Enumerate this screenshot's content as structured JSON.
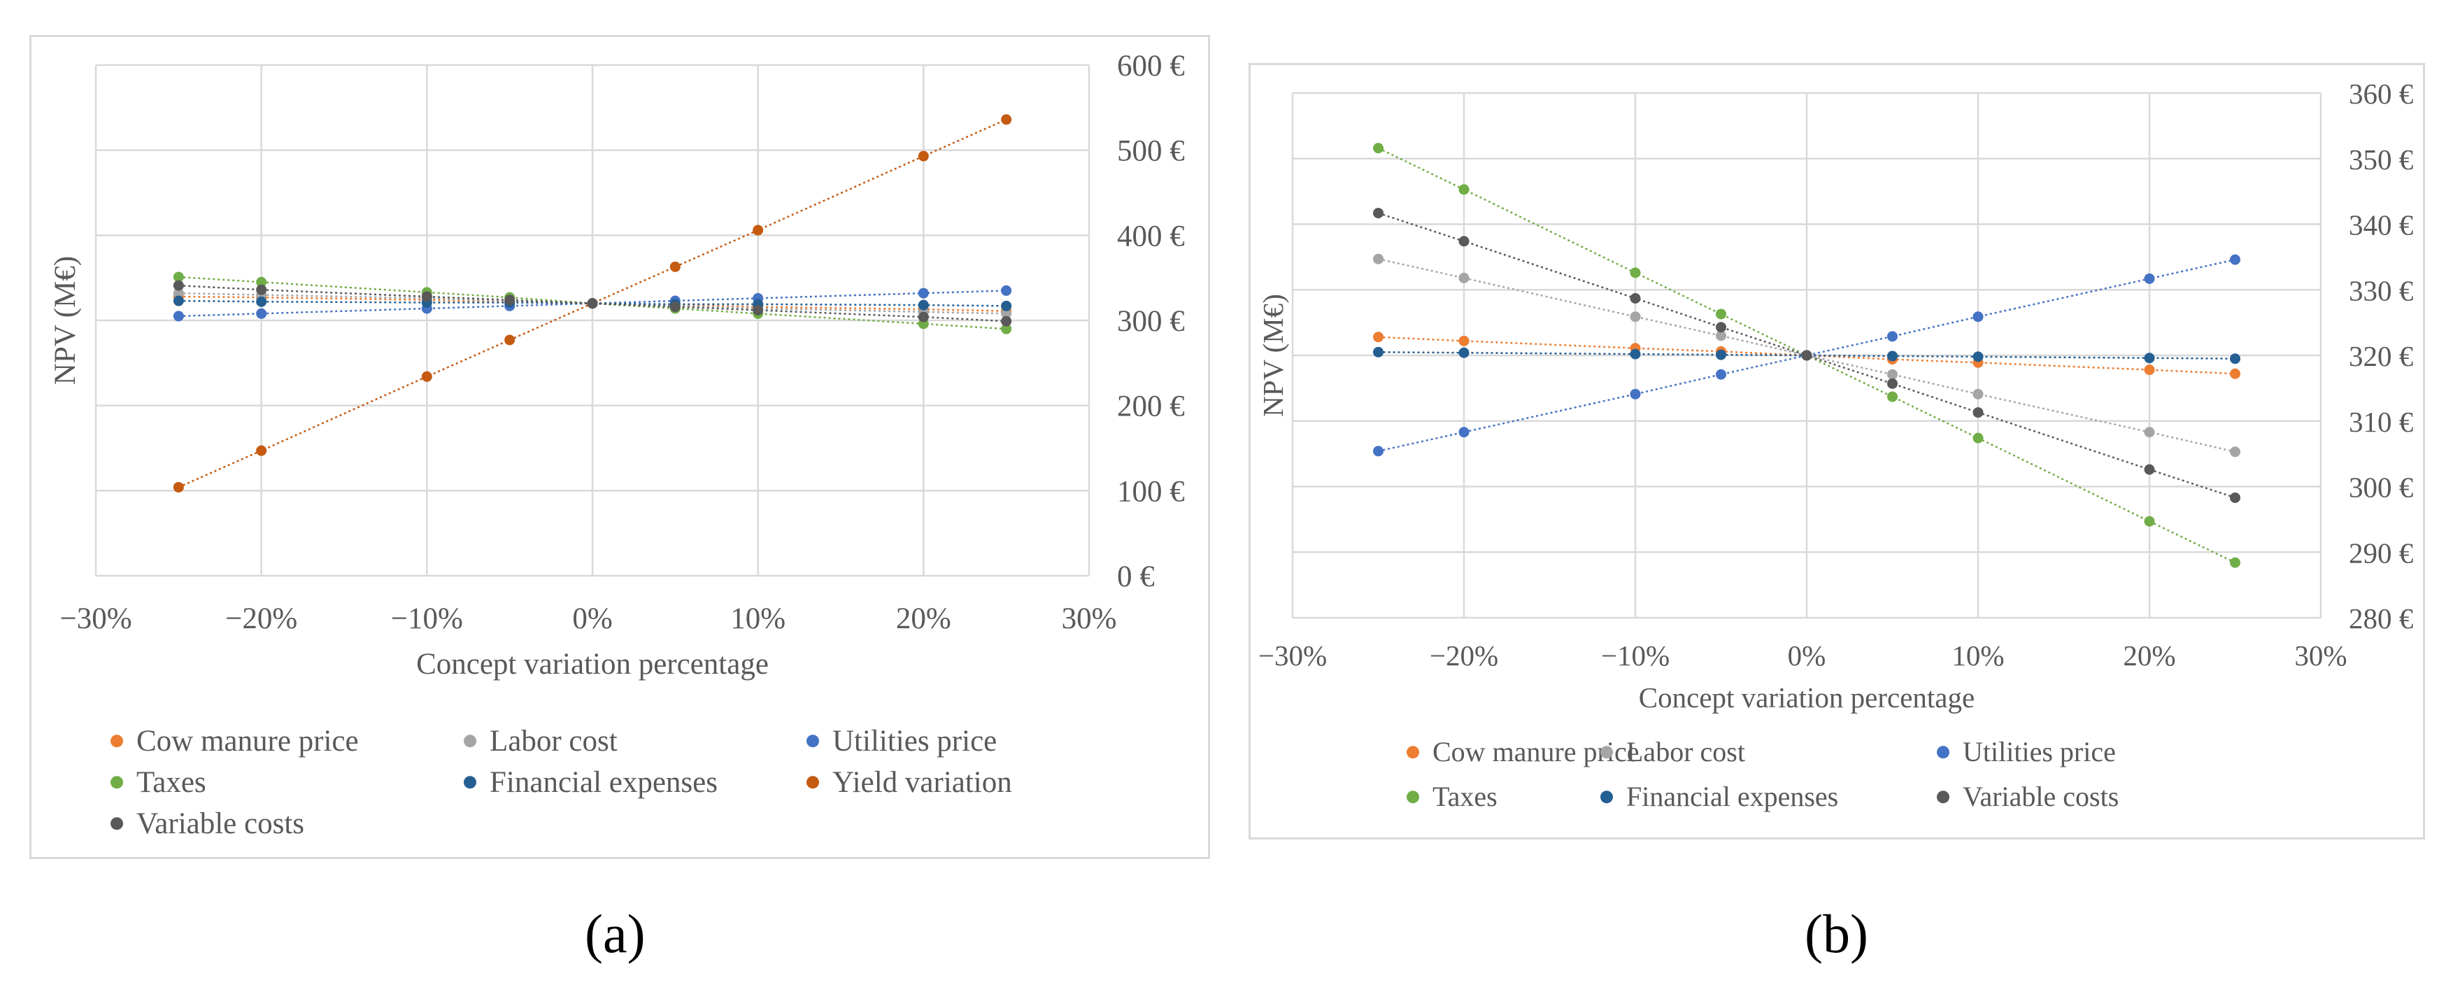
{
  "captions": {
    "a": "(a)",
    "b": "(b)"
  },
  "chart_data": [
    {
      "id": "a",
      "type": "line",
      "xlabel": "Concept variation percentage",
      "ylabel": "NPV (M€)",
      "x_ticks": [
        "−30%",
        "−20%",
        "−10%",
        "0%",
        "10%",
        "20%",
        "30%"
      ],
      "xlim": [
        -30,
        30
      ],
      "y2_ticks": [
        "0 €",
        "100 €",
        "200 €",
        "300 €",
        "400 €",
        "500 €",
        "600 €"
      ],
      "y2lim": [
        0,
        600
      ],
      "x": [
        -25,
        -20,
        -10,
        -5,
        0,
        5,
        10,
        20,
        25
      ],
      "series": [
        {
          "name": "Cow manure price",
          "color": "#ed7d31",
          "values": [
            328,
            327,
            324,
            322,
            320,
            318,
            316,
            313,
            311
          ]
        },
        {
          "name": "Labor cost",
          "color": "#a5a5a5",
          "values": [
            332,
            330,
            326,
            323,
            320,
            317,
            314,
            310,
            308
          ]
        },
        {
          "name": "Utilities price",
          "color": "#4472c4",
          "values": [
            305,
            308,
            314,
            317,
            320,
            323,
            326,
            332,
            335
          ]
        },
        {
          "name": "Taxes",
          "color": "#70ad47",
          "values": [
            351,
            345,
            333,
            327,
            320,
            314,
            308,
            296,
            290
          ]
        },
        {
          "name": "Financial expenses",
          "color": "#255e91",
          "values": [
            323,
            322,
            321,
            321,
            320,
            319,
            319,
            318,
            317
          ]
        },
        {
          "name": "Yield variation",
          "color": "#c55a11",
          "values": [
            104,
            147,
            234,
            277,
            320,
            363,
            406,
            493,
            536
          ]
        },
        {
          "name": "Variable costs",
          "color": "#595959",
          "values": [
            341,
            336,
            328,
            324,
            320,
            316,
            312,
            304,
            299
          ]
        }
      ]
    },
    {
      "id": "b",
      "type": "line",
      "xlabel": "Concept variation percentage",
      "ylabel": "NPV (M€)",
      "x_ticks": [
        "−30%",
        "−20%",
        "−10%",
        "0%",
        "10%",
        "20%",
        "30%"
      ],
      "xlim": [
        -30,
        30
      ],
      "y2_ticks": [
        "280 €",
        "290 €",
        "300 €",
        "310 €",
        "320 €",
        "330 €",
        "340 €",
        "350 €",
        "360 €"
      ],
      "y2lim": [
        280,
        360
      ],
      "x": [
        -25,
        -20,
        -10,
        -5,
        0,
        5,
        10,
        20,
        25
      ],
      "series": [
        {
          "name": "Cow manure price",
          "color": "#ed7d31",
          "values": [
            322.8,
            322.2,
            321.1,
            320.6,
            320.0,
            319.4,
            318.9,
            317.8,
            317.2
          ]
        },
        {
          "name": "Labor cost",
          "color": "#a5a5a5",
          "values": [
            334.7,
            331.8,
            325.9,
            323.0,
            320.0,
            317.1,
            314.1,
            308.3,
            305.3
          ]
        },
        {
          "name": "Utilities price",
          "color": "#4472c4",
          "values": [
            305.4,
            308.3,
            314.1,
            317.1,
            320.0,
            322.9,
            325.9,
            331.7,
            334.6
          ]
        },
        {
          "name": "Taxes",
          "color": "#70ad47",
          "values": [
            351.6,
            345.3,
            332.6,
            326.3,
            320.0,
            313.7,
            307.4,
            294.7,
            288.4
          ]
        },
        {
          "name": "Financial expenses",
          "color": "#255e91",
          "values": [
            320.5,
            320.4,
            320.2,
            320.1,
            320.0,
            319.9,
            319.8,
            319.6,
            319.5
          ]
        },
        {
          "name": "Variable costs",
          "color": "#595959",
          "values": [
            341.7,
            337.4,
            328.7,
            324.3,
            320.0,
            315.7,
            311.3,
            302.6,
            298.3
          ]
        }
      ]
    }
  ]
}
